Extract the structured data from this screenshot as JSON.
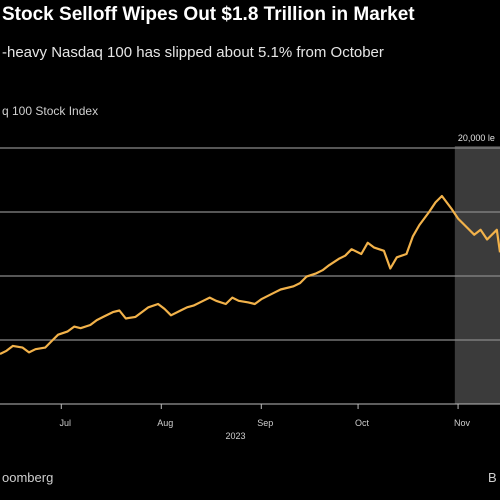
{
  "header": {
    "title": "Stock Selloff Wipes Out $1.8 Trillion in Market",
    "subtitle": "-heavy Nasdaq 100 has slipped about 5.1% from October"
  },
  "footer": {
    "source": "oomberg",
    "corner": "B"
  },
  "colors": {
    "background": "#000000",
    "line": "#f2b24a",
    "gridline": "#8a8a8a",
    "shade": "#3b3b3b"
  },
  "chart_data": {
    "type": "line",
    "title": "Stock Selloff Wipes Out $1.8 Trillion in Market",
    "subtitle": "-heavy Nasdaq 100 has slipped about 5.1% from October",
    "series_label": "q 100 Stock Index",
    "xlabel": "2023",
    "ylabel": "",
    "x_ticks": [
      "Jul",
      "Aug",
      "Sep",
      "Oct",
      "Nov"
    ],
    "x_domain": [
      "2023-06-12",
      "2023-11-14"
    ],
    "ylim": [
      20,
      180
    ],
    "grid": true,
    "shaded_region": {
      "x": [
        "2023-10-31",
        "2023-11-14"
      ],
      "label": "20,000 le"
    },
    "series": [
      {
        "values": [
          {
            "x": "2023-06-12",
            "y": 51
          },
          {
            "x": "2023-06-14",
            "y": 53
          },
          {
            "x": "2023-06-16",
            "y": 56
          },
          {
            "x": "2023-06-19",
            "y": 55
          },
          {
            "x": "2023-06-21",
            "y": 52
          },
          {
            "x": "2023-06-23",
            "y": 54
          },
          {
            "x": "2023-06-26",
            "y": 55
          },
          {
            "x": "2023-06-28",
            "y": 59
          },
          {
            "x": "2023-06-30",
            "y": 63
          },
          {
            "x": "2023-07-03",
            "y": 65
          },
          {
            "x": "2023-07-05",
            "y": 68
          },
          {
            "x": "2023-07-07",
            "y": 67
          },
          {
            "x": "2023-07-10",
            "y": 69
          },
          {
            "x": "2023-07-12",
            "y": 72
          },
          {
            "x": "2023-07-14",
            "y": 74
          },
          {
            "x": "2023-07-17",
            "y": 77
          },
          {
            "x": "2023-07-19",
            "y": 78
          },
          {
            "x": "2023-07-21",
            "y": 73
          },
          {
            "x": "2023-07-24",
            "y": 74
          },
          {
            "x": "2023-07-26",
            "y": 77
          },
          {
            "x": "2023-07-28",
            "y": 80
          },
          {
            "x": "2023-07-31",
            "y": 82
          },
          {
            "x": "2023-08-02",
            "y": 79
          },
          {
            "x": "2023-08-04",
            "y": 75
          },
          {
            "x": "2023-08-07",
            "y": 78
          },
          {
            "x": "2023-08-09",
            "y": 80
          },
          {
            "x": "2023-08-11",
            "y": 81
          },
          {
            "x": "2023-08-14",
            "y": 84
          },
          {
            "x": "2023-08-16",
            "y": 86
          },
          {
            "x": "2023-08-18",
            "y": 84
          },
          {
            "x": "2023-08-21",
            "y": 82
          },
          {
            "x": "2023-08-23",
            "y": 86
          },
          {
            "x": "2023-08-25",
            "y": 84
          },
          {
            "x": "2023-08-28",
            "y": 83
          },
          {
            "x": "2023-08-30",
            "y": 82
          },
          {
            "x": "2023-09-01",
            "y": 85
          },
          {
            "x": "2023-09-05",
            "y": 89
          },
          {
            "x": "2023-09-07",
            "y": 91
          },
          {
            "x": "2023-09-11",
            "y": 93
          },
          {
            "x": "2023-09-13",
            "y": 95
          },
          {
            "x": "2023-09-15",
            "y": 99
          },
          {
            "x": "2023-09-18",
            "y": 101
          },
          {
            "x": "2023-09-20",
            "y": 103
          },
          {
            "x": "2023-09-22",
            "y": 106
          },
          {
            "x": "2023-09-25",
            "y": 110
          },
          {
            "x": "2023-09-27",
            "y": 112
          },
          {
            "x": "2023-09-29",
            "y": 116
          },
          {
            "x": "2023-10-02",
            "y": 113
          },
          {
            "x": "2023-10-04",
            "y": 120
          },
          {
            "x": "2023-10-06",
            "y": 117
          },
          {
            "x": "2023-10-09",
            "y": 115
          },
          {
            "x": "2023-10-11",
            "y": 104
          },
          {
            "x": "2023-10-13",
            "y": 111
          },
          {
            "x": "2023-10-16",
            "y": 113
          },
          {
            "x": "2023-10-18",
            "y": 124
          },
          {
            "x": "2023-10-20",
            "y": 131
          },
          {
            "x": "2023-10-23",
            "y": 139
          },
          {
            "x": "2023-10-25",
            "y": 145
          },
          {
            "x": "2023-10-27",
            "y": 149
          },
          {
            "x": "2023-10-30",
            "y": 141
          },
          {
            "x": "2023-11-01",
            "y": 135
          },
          {
            "x": "2023-11-03",
            "y": 131
          },
          {
            "x": "2023-11-06",
            "y": 125
          },
          {
            "x": "2023-11-08",
            "y": 128
          },
          {
            "x": "2023-11-10",
            "y": 122
          },
          {
            "x": "2023-11-13",
            "y": 128
          },
          {
            "x": "2023-11-14",
            "y": 114
          }
        ]
      }
    ]
  }
}
